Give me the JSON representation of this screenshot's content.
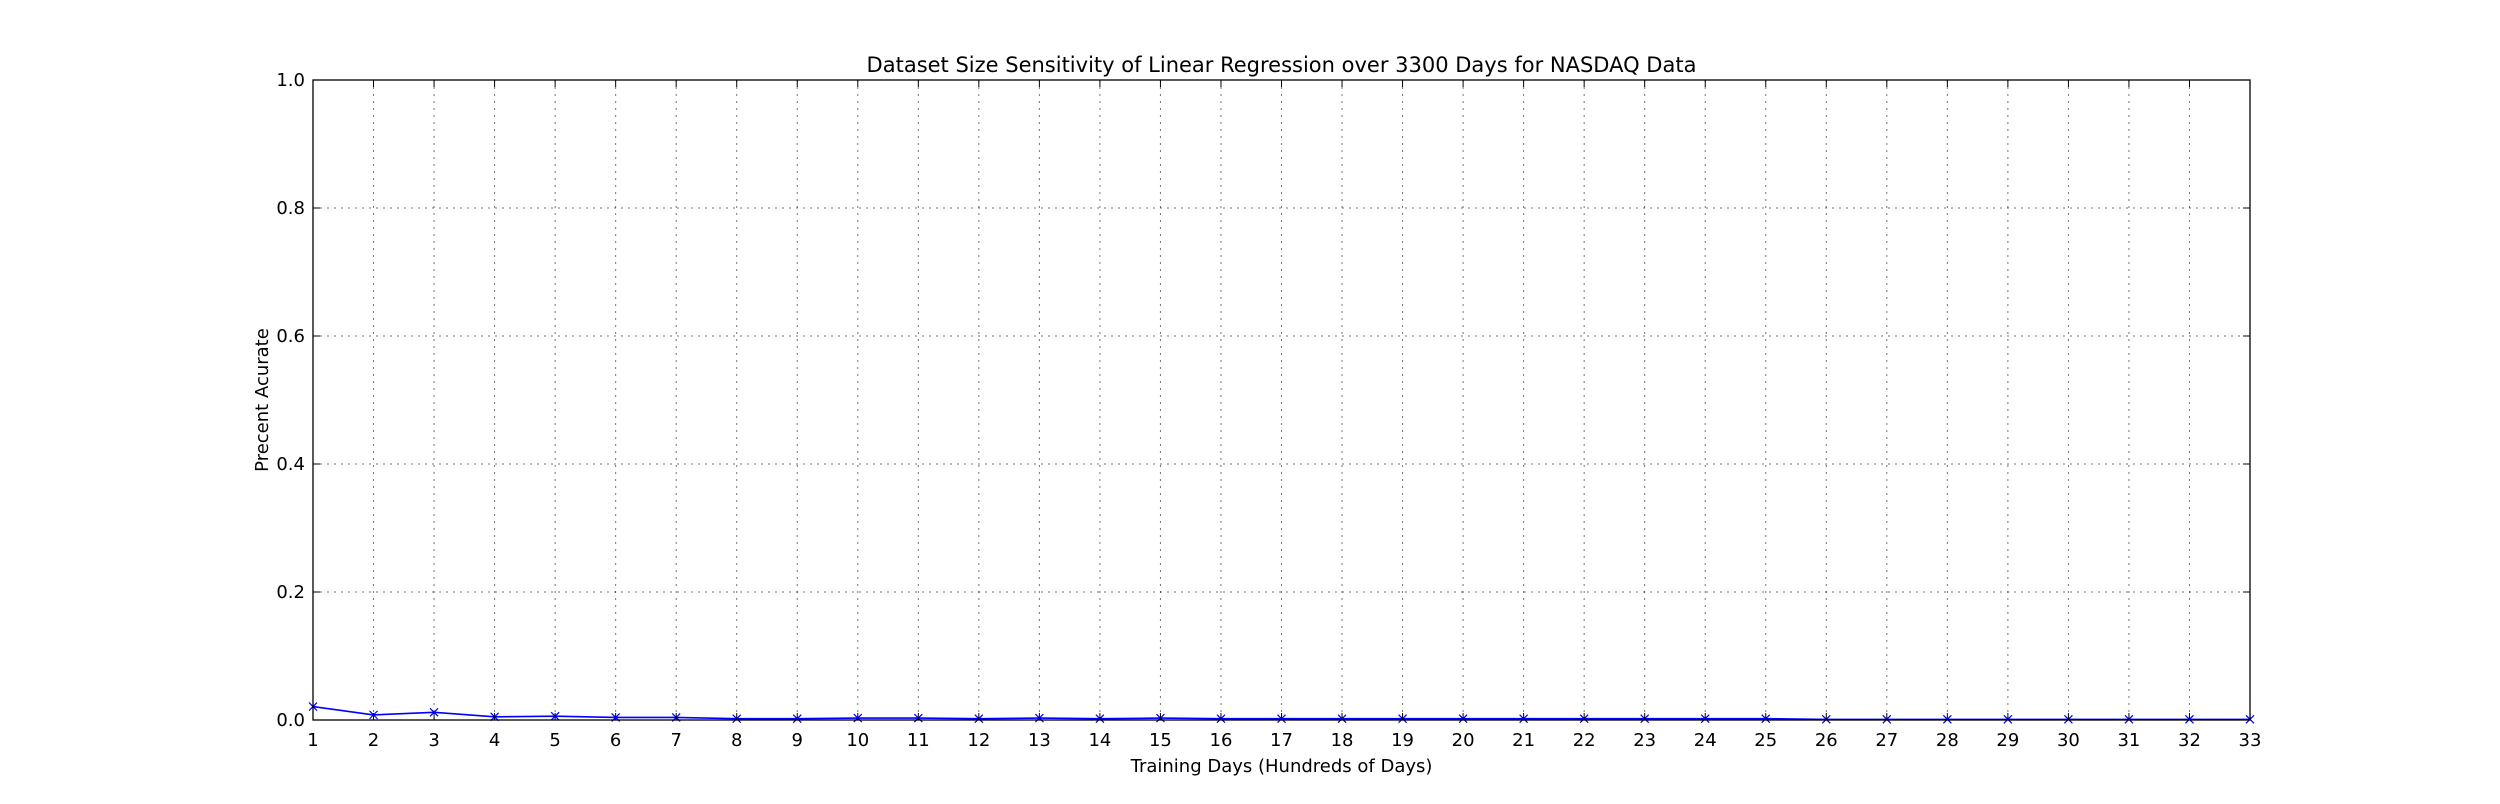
{
  "chart_data": {
    "type": "line",
    "title": "Dataset Size Sensitivity of Linear Regression over 3300 Days for NASDAQ Data",
    "xlabel": "Training Days (Hundreds of Days)",
    "ylabel": "Precent Acurate",
    "xlim": [
      1,
      33
    ],
    "ylim": [
      0.0,
      1.0
    ],
    "x_ticks": [
      1,
      2,
      3,
      4,
      5,
      6,
      7,
      8,
      9,
      10,
      11,
      12,
      13,
      14,
      15,
      16,
      17,
      18,
      19,
      20,
      21,
      22,
      23,
      24,
      25,
      26,
      27,
      28,
      29,
      30,
      31,
      32,
      33
    ],
    "y_ticks": [
      "0.0",
      "0.2",
      "0.4",
      "0.6",
      "0.8",
      "1.0"
    ],
    "grid": true,
    "series": [
      {
        "color": "#0000ff",
        "marker": "x",
        "x": [
          1,
          2,
          3,
          4,
          5,
          6,
          7,
          8,
          9,
          10,
          11,
          12,
          13,
          14,
          15,
          16,
          17,
          18,
          19,
          20,
          21,
          22,
          23,
          24,
          25,
          26,
          27,
          28,
          29,
          30,
          31,
          32,
          33
        ],
        "y": [
          0.021,
          0.008,
          0.012,
          0.005,
          0.006,
          0.004,
          0.004,
          0.002,
          0.002,
          0.003,
          0.003,
          0.002,
          0.003,
          0.002,
          0.003,
          0.002,
          0.002,
          0.002,
          0.002,
          0.002,
          0.002,
          0.002,
          0.002,
          0.002,
          0.002,
          0.001,
          0.001,
          0.001,
          0.001,
          0.001,
          0.001,
          0.001,
          0.001
        ]
      }
    ]
  }
}
